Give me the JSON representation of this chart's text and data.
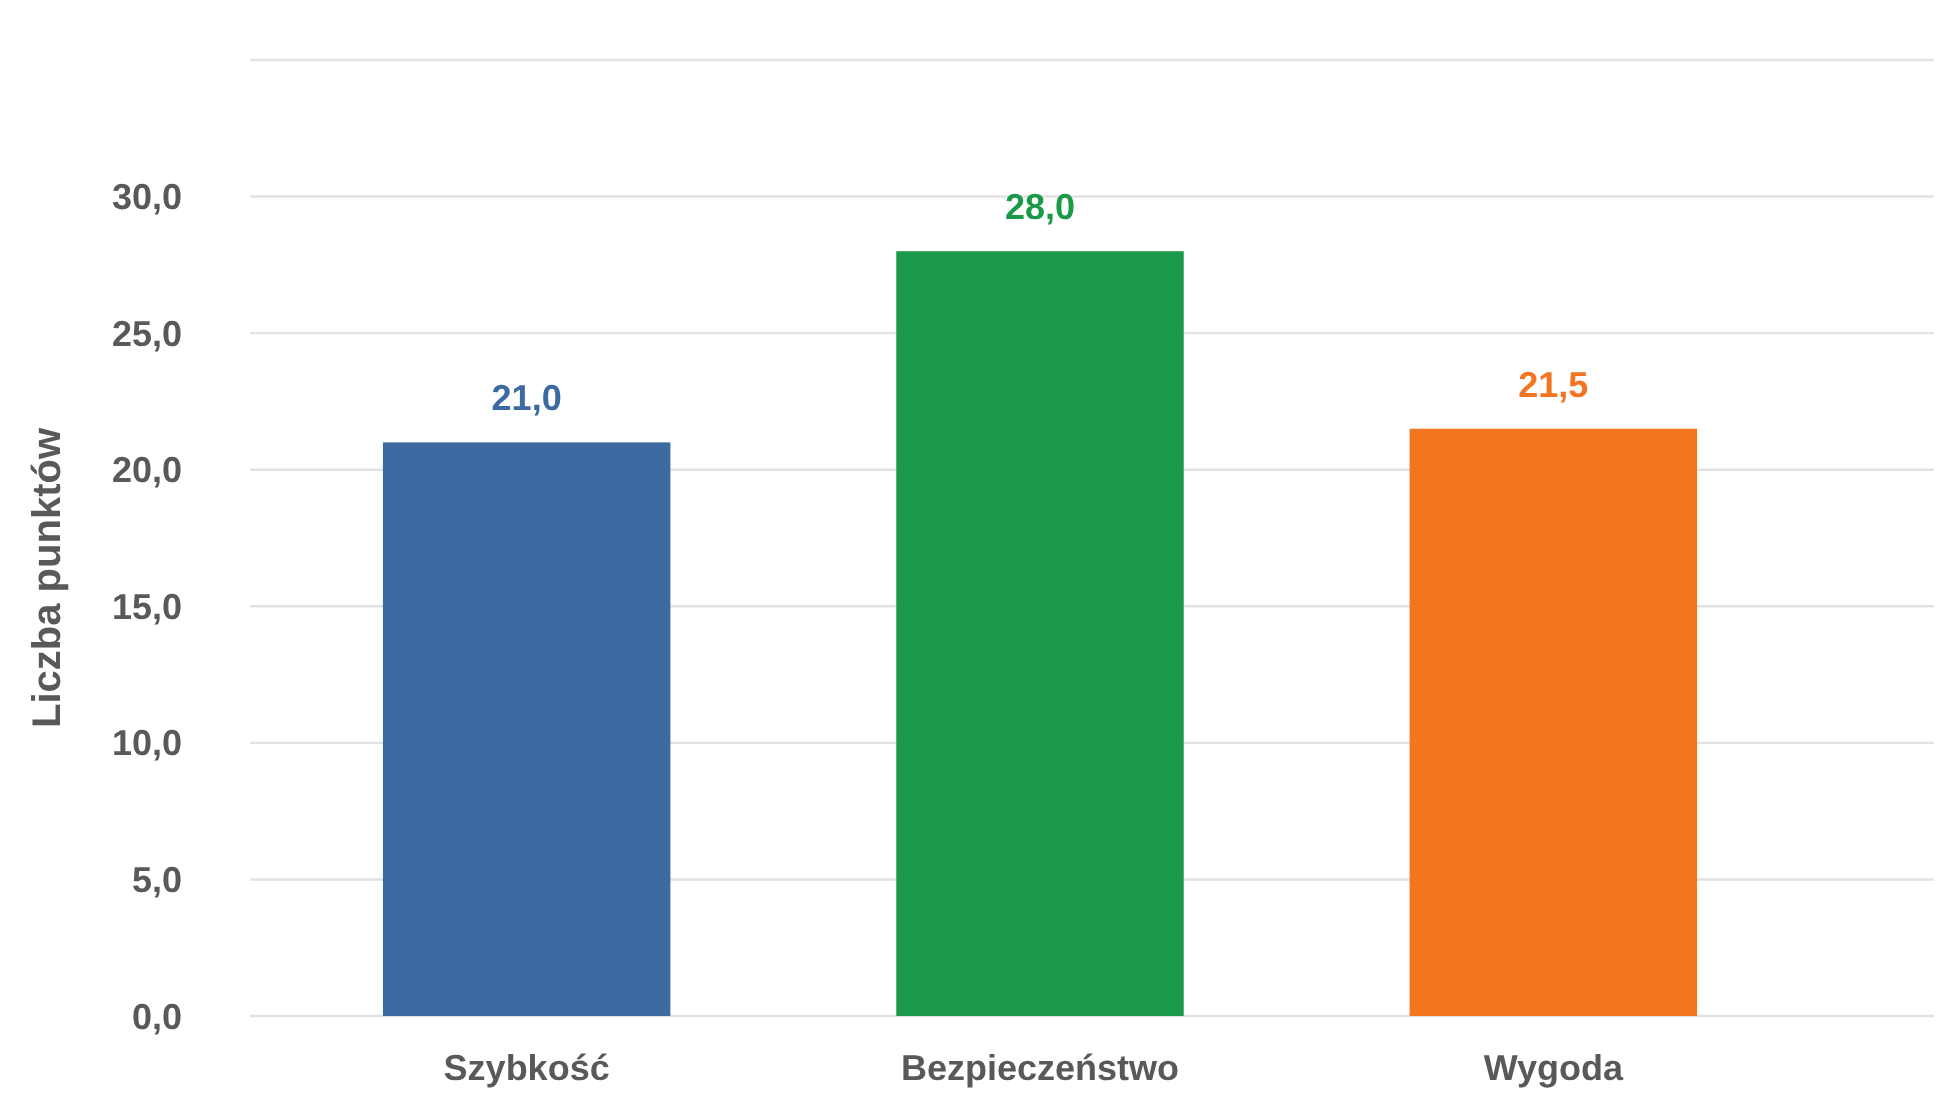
{
  "chart_data": {
    "type": "bar",
    "ylabel": "Liczba punktów",
    "categories": [
      "Szybkość",
      "Bezpieczeństwo",
      "Wygoda"
    ],
    "values": [
      21.0,
      28.0,
      21.5
    ],
    "colors": [
      "#3d6aa3",
      "#1a9a48",
      "#f47520"
    ],
    "value_labels": [
      "21,0",
      "28,0",
      "21,5"
    ],
    "ylim": [
      0,
      35
    ],
    "yticks": [
      {
        "value": 0,
        "label": "0,0"
      },
      {
        "value": 5,
        "label": "5,0"
      },
      {
        "value": 10,
        "label": "10,0"
      },
      {
        "value": 15,
        "label": "15,0"
      },
      {
        "value": 20,
        "label": "20,0"
      },
      {
        "value": 25,
        "label": "25,0"
      },
      {
        "value": 30,
        "label": "30,0"
      },
      {
        "value": 35,
        "label": null
      }
    ],
    "grid": "y"
  }
}
